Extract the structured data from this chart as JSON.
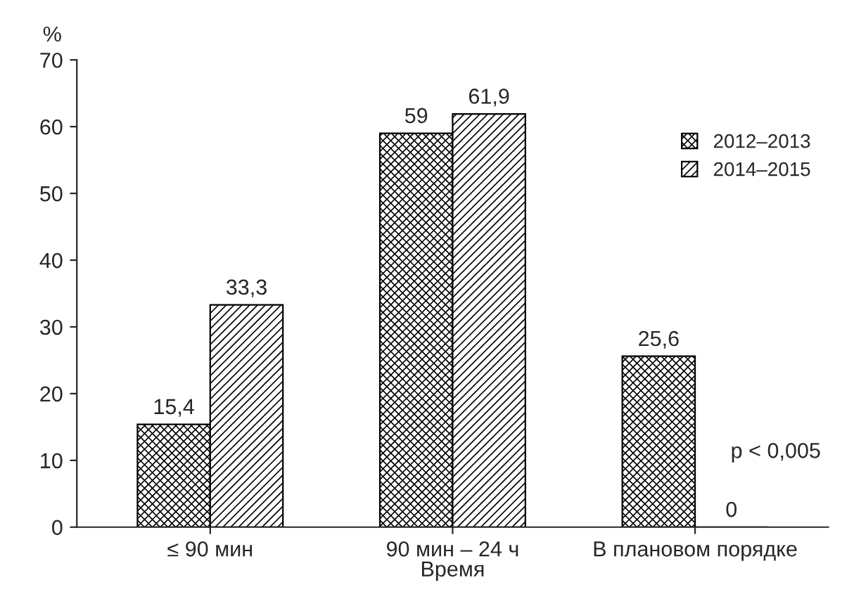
{
  "chart_data": {
    "type": "bar",
    "xlabel": "Время",
    "ylabel": "%",
    "categories": [
      "≤ 90 мин",
      "90 мин – 24 ч",
      "В плановом порядке"
    ],
    "series": [
      {
        "name": "2012–2013",
        "color": "#000000",
        "values": [
          15.4,
          59,
          25.6
        ],
        "value_labels": [
          "15,4",
          "59",
          "25,6"
        ]
      },
      {
        "name": "2014–2015",
        "color": "#000000",
        "values": [
          33.3,
          61.9,
          0
        ],
        "value_labels": [
          "33,3",
          "61,9",
          "0"
        ]
      }
    ],
    "ylim": [
      0,
      70
    ],
    "yticks": [
      0,
      10,
      20,
      30,
      40,
      50,
      60,
      70
    ],
    "grid": false,
    "legend": "top right",
    "annotations": [
      "p < 0,005"
    ]
  }
}
